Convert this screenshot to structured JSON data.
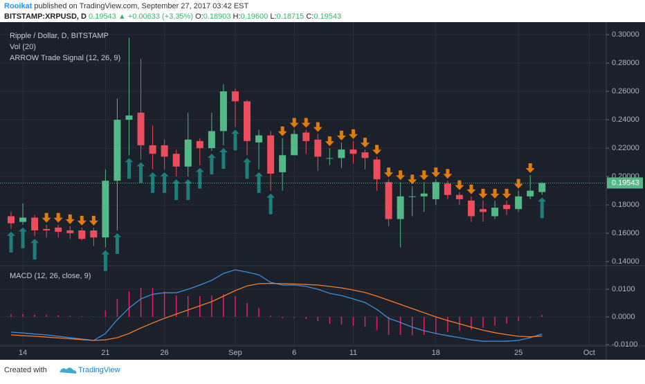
{
  "header": {
    "author": "Rooikat",
    "published": "published on TradingView.com, September 27, 2017 03:42 EST",
    "symbol": "BITSTAMP:XRPUSD, D",
    "last": "0.19543",
    "arrow": "▲",
    "change": "+0.00633 (+3.35%)",
    "ohlc": [
      {
        "label": "O:",
        "value": "0.18903"
      },
      {
        "label": "H:",
        "value": "0.19600"
      },
      {
        "label": "L:",
        "value": "0.18715"
      },
      {
        "label": "C:",
        "value": "0.19543"
      }
    ]
  },
  "footer": {
    "created": "Created with",
    "brand": "TradingView"
  },
  "chart_data": {
    "type": "candlestick",
    "legend": [
      "Ripple / Dollar, D, BITSTAMP",
      "Vol (20)",
      "ARROW Trade Signal (12, 26, 9)"
    ],
    "up_color": "#53b987",
    "down_color": "#eb4d5c",
    "buy_color": "#1e7f7a",
    "sell_color": "#e07b0f",
    "categories": [
      null,
      "14",
      null,
      null,
      null,
      null,
      null,
      null,
      "21",
      null,
      null,
      null,
      null,
      "26",
      null,
      null,
      null,
      null,
      null,
      "Sep",
      null,
      null,
      null,
      null,
      "6",
      null,
      null,
      null,
      null,
      "11",
      null,
      null,
      null,
      null,
      null,
      null,
      "18",
      null,
      null,
      null,
      null,
      null,
      null,
      "25",
      null,
      null,
      null,
      null,
      null,
      "Oct"
    ],
    "open": [
      0.172,
      0.168,
      0.171,
      0.163,
      0.164,
      0.162,
      0.162,
      0.162,
      0.157,
      0.197,
      0.24,
      0.245,
      0.222,
      0.222,
      0.216,
      0.207,
      0.225,
      0.22,
      0.232,
      0.26,
      0.253,
      0.224,
      0.229,
      0.203,
      0.215,
      0.231,
      0.226,
      0.213,
      0.213,
      0.219,
      0.217,
      0.212,
      0.196,
      0.17,
      0.186,
      0.186,
      0.184,
      0.195,
      0.187,
      0.183,
      0.177,
      0.172,
      0.18,
      0.177,
      0.186,
      0.18903,
      null,
      null,
      null,
      null
    ],
    "high": [
      0.175,
      0.181,
      0.173,
      0.166,
      0.166,
      0.165,
      0.164,
      0.164,
      0.205,
      0.255,
      0.298,
      0.283,
      0.236,
      0.226,
      0.219,
      0.245,
      0.227,
      0.245,
      0.265,
      0.262,
      0.254,
      0.233,
      0.232,
      0.227,
      0.233,
      0.233,
      0.23,
      0.22,
      0.224,
      0.225,
      0.219,
      0.214,
      0.198,
      0.196,
      0.193,
      0.196,
      0.198,
      0.197,
      0.189,
      0.186,
      0.183,
      0.183,
      0.183,
      0.19,
      0.201,
      0.196,
      null,
      null,
      null,
      null
    ],
    "low": [
      0.163,
      0.166,
      0.158,
      0.157,
      0.157,
      0.156,
      0.155,
      0.151,
      0.15,
      0.162,
      0.215,
      0.212,
      0.205,
      0.205,
      0.2,
      0.2,
      0.208,
      0.218,
      0.222,
      0.235,
      0.215,
      0.205,
      0.19,
      0.19,
      0.215,
      0.216,
      0.204,
      0.208,
      0.206,
      0.209,
      0.205,
      0.19,
      0.165,
      0.15,
      0.172,
      0.175,
      0.18,
      0.184,
      0.18,
      0.168,
      0.168,
      0.17,
      0.173,
      0.175,
      0.184,
      0.18715,
      null,
      null,
      null,
      null
    ],
    "close": [
      0.167,
      0.171,
      0.162,
      0.162,
      0.161,
      0.16,
      0.156,
      0.157,
      0.197,
      0.24,
      0.243,
      0.222,
      0.216,
      0.214,
      0.207,
      0.226,
      0.22,
      0.232,
      0.26,
      0.253,
      0.225,
      0.229,
      0.202,
      0.215,
      0.23,
      0.225,
      0.214,
      0.213,
      0.219,
      0.216,
      0.213,
      0.198,
      0.17,
      0.186,
      0.186,
      0.188,
      0.196,
      0.187,
      0.184,
      0.172,
      0.175,
      0.178,
      0.177,
      0.186,
      0.19,
      0.19543,
      null,
      null,
      null,
      null
    ],
    "signals": [
      "up",
      "up",
      "up",
      "down",
      "down",
      "down",
      "down",
      "down",
      "up",
      "up",
      "up",
      "up",
      "up",
      "up",
      "up",
      "up",
      "up",
      "up",
      "up",
      "up",
      "up",
      "up",
      "up",
      "down",
      "down",
      "down",
      "down",
      "down",
      "down",
      "down",
      "down",
      "down",
      "down",
      "down",
      "down",
      "down",
      "down",
      "down",
      "down",
      "down",
      "down",
      "down",
      "down",
      "down",
      "down",
      "up",
      null,
      null,
      null,
      null
    ],
    "ylim": [
      0.1376,
      0.3059
    ],
    "yticks": [
      {
        "value": 0.14,
        "label": "0.14000"
      },
      {
        "value": 0.16,
        "label": "0.16000"
      },
      {
        "value": 0.18,
        "label": "0.18000"
      },
      {
        "value": 0.2,
        "label": "0.20000"
      },
      {
        "value": 0.22,
        "label": "0.22000"
      },
      {
        "value": 0.24,
        "label": "0.24000"
      },
      {
        "value": 0.26,
        "label": "0.26000"
      },
      {
        "value": 0.28,
        "label": "0.28000"
      },
      {
        "value": 0.3,
        "label": "0.30000"
      }
    ],
    "grid": true,
    "macd": {
      "title": "MACD (12, 26, close, 9)",
      "ylim": [
        -0.0105,
        0.018
      ],
      "yticks": [
        {
          "value": 0.01,
          "label": "0.0100"
        },
        {
          "value": 0,
          "label": "0.0000"
        },
        {
          "value": -0.01,
          "label": "-0.0100"
        }
      ],
      "series": [
        {
          "name": "MACD",
          "color": "#3c8fde",
          "values": [
            -0.0055,
            -0.0058,
            -0.0062,
            -0.0065,
            -0.007,
            -0.0075,
            -0.008,
            -0.0085,
            -0.006,
            -0.001,
            0.0032,
            0.0065,
            0.0082,
            0.0087,
            0.0087,
            0.01,
            0.0115,
            0.0132,
            0.0157,
            0.017,
            0.0162,
            0.0152,
            0.0125,
            0.0115,
            0.0115,
            0.011,
            0.01,
            0.0085,
            0.0077,
            0.0065,
            0.0052,
            0.0027,
            -0.0005,
            -0.002,
            -0.0037,
            -0.005,
            -0.006,
            -0.0068,
            -0.0075,
            -0.0083,
            -0.0088,
            -0.0088,
            -0.0088,
            -0.0085,
            -0.0075,
            -0.0062,
            null,
            null,
            null,
            null
          ]
        },
        {
          "name": "Signal",
          "color": "#f57c2a",
          "values": [
            -0.0065,
            -0.0068,
            -0.007,
            -0.0073,
            -0.0076,
            -0.0079,
            -0.0082,
            -0.0085,
            -0.0083,
            -0.0075,
            -0.006,
            -0.004,
            -0.0022,
            -0.0005,
            0.001,
            0.0025,
            0.004,
            0.0055,
            0.0075,
            0.0095,
            0.0112,
            0.012,
            0.0121,
            0.012,
            0.0119,
            0.0117,
            0.0115,
            0.011,
            0.0105,
            0.0097,
            0.0088,
            0.0075,
            0.006,
            0.0045,
            0.003,
            0.0015,
            0,
            -0.0013,
            -0.0025,
            -0.0037,
            -0.0048,
            -0.0057,
            -0.0064,
            -0.007,
            -0.0072,
            -0.0069,
            null,
            null,
            null,
            null
          ]
        }
      ],
      "histogram": {
        "color": "#e91e63",
        "values": [
          0.001,
          0.001,
          0.0008,
          0.0008,
          0.0006,
          0.0004,
          0.0002,
          0,
          0.0023,
          0.0065,
          0.0092,
          0.0105,
          0.0104,
          0.0092,
          0.0077,
          0.0075,
          0.0075,
          0.0077,
          0.0082,
          0.0075,
          0.005,
          0.0032,
          0.0004,
          -0.0005,
          -0.0004,
          -0.0007,
          -0.0015,
          -0.0025,
          -0.0028,
          -0.0032,
          -0.0036,
          -0.0048,
          -0.0065,
          -0.0065,
          -0.0067,
          -0.0065,
          -0.006,
          -0.0055,
          -0.005,
          -0.0046,
          -0.004,
          -0.0031,
          -0.0024,
          -0.0015,
          -0.0003,
          0.0007,
          null,
          null,
          null,
          null
        ]
      }
    }
  }
}
